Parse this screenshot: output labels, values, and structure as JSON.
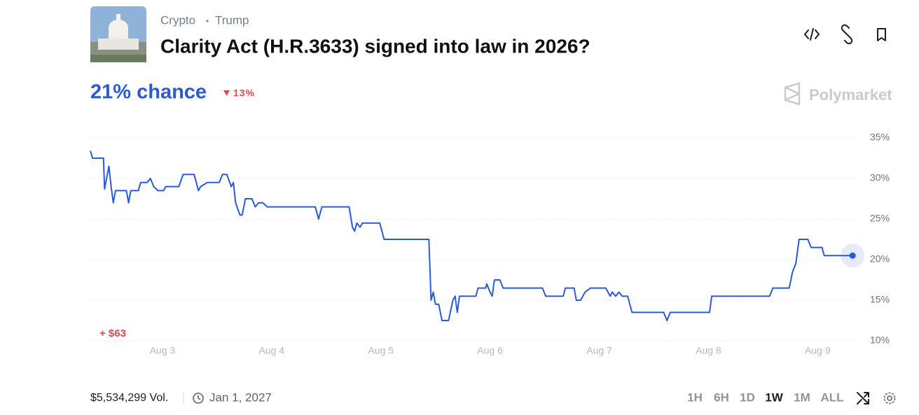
{
  "header": {
    "tags": [
      "Crypto",
      "Trump"
    ],
    "title": "Clarity Act (H.R.3633) signed into law in 2026?"
  },
  "chance": {
    "label": "21% chance",
    "change": "13%"
  },
  "brand": "Polymarket",
  "chart_data": {
    "type": "line",
    "color": "#2a5bd7",
    "x": [
      2.34,
      2.36,
      2.46,
      2.47,
      2.51,
      2.53,
      2.55,
      2.57,
      2.67,
      2.69,
      2.71,
      2.78,
      2.8,
      2.86,
      2.89,
      2.92,
      2.96,
      3.01,
      3.03,
      3.15,
      3.19,
      3.29,
      3.33,
      3.35,
      3.41,
      3.52,
      3.55,
      3.59,
      3.63,
      3.65,
      3.67,
      3.71,
      3.73,
      3.76,
      3.82,
      3.85,
      3.88,
      3.92,
      3.96,
      4.4,
      4.43,
      4.46,
      4.71,
      4.74,
      4.76,
      4.78,
      4.81,
      4.83,
      4.99,
      5.03,
      5.44,
      5.46,
      5.48,
      5.5,
      5.53,
      5.56,
      5.62,
      5.66,
      5.68,
      5.7,
      5.72,
      5.87,
      5.89,
      5.96,
      5.97,
      6.0,
      6.02,
      6.04,
      6.09,
      6.12,
      6.48,
      6.51,
      6.67,
      6.69,
      6.77,
      6.79,
      6.83,
      6.87,
      6.92,
      7.06,
      7.1,
      7.12,
      7.15,
      7.18,
      7.21,
      7.26,
      7.3,
      7.59,
      7.62,
      7.65,
      8.01,
      8.03,
      8.56,
      8.59,
      8.74,
      8.77,
      8.8,
      8.83,
      8.91,
      8.94,
      9.04,
      9.06,
      9.32
    ],
    "values": [
      33.4,
      32.5,
      32.5,
      28.7,
      31.5,
      29,
      27,
      28.5,
      28.5,
      27,
      28.5,
      28.5,
      29.5,
      29.5,
      30,
      29,
      28.5,
      28.5,
      29,
      29,
      30.5,
      30.5,
      28.5,
      29,
      29.5,
      29.5,
      30.5,
      30.5,
      29,
      29.5,
      27,
      25.5,
      25.5,
      27.5,
      27.5,
      26.5,
      27,
      27,
      26.5,
      26.5,
      25,
      26.5,
      26.5,
      24,
      23.5,
      24.5,
      24,
      24.5,
      24.5,
      22.5,
      22.5,
      15,
      16,
      14.5,
      14.5,
      12.5,
      12.5,
      15,
      15.5,
      13.5,
      15.5,
      15.5,
      16.5,
      16.5,
      17,
      16,
      15.5,
      17.5,
      17.5,
      16.5,
      16.5,
      15.5,
      15.5,
      16.5,
      16.5,
      15,
      15,
      16,
      16.5,
      16.5,
      15.5,
      16,
      15.5,
      16,
      15.5,
      15.5,
      13.5,
      13.5,
      12.5,
      13.5,
      13.5,
      15.5,
      15.5,
      16.5,
      16.5,
      18.5,
      19.5,
      22.5,
      22.5,
      21.5,
      21.5,
      20.5,
      20.5
    ],
    "xlim": [
      2.34,
      9.37
    ],
    "xticks": [
      {
        "value": 3,
        "label": "Aug 3"
      },
      {
        "value": 4,
        "label": "Aug 4"
      },
      {
        "value": 5,
        "label": "Aug 5"
      },
      {
        "value": 6,
        "label": "Aug 6"
      },
      {
        "value": 7,
        "label": "Aug 7"
      },
      {
        "value": 8,
        "label": "Aug 8"
      },
      {
        "value": 9,
        "label": "Aug 9"
      }
    ],
    "ylim": [
      10,
      35
    ],
    "yticks": [
      {
        "value": 10,
        "label": "10%"
      },
      {
        "value": 15,
        "label": "15%"
      },
      {
        "value": 20,
        "label": "20%"
      },
      {
        "value": 25,
        "label": "25%"
      },
      {
        "value": 30,
        "label": "30%"
      },
      {
        "value": 35,
        "label": "35%"
      }
    ],
    "grid": true,
    "annotation": "+ $63"
  },
  "footer": {
    "volume": "$5,534,299 Vol.",
    "end_date": "Jan 1, 2027",
    "ranges": [
      "1H",
      "6H",
      "1D",
      "1W",
      "1M",
      "ALL"
    ],
    "active_range_index": 3
  }
}
